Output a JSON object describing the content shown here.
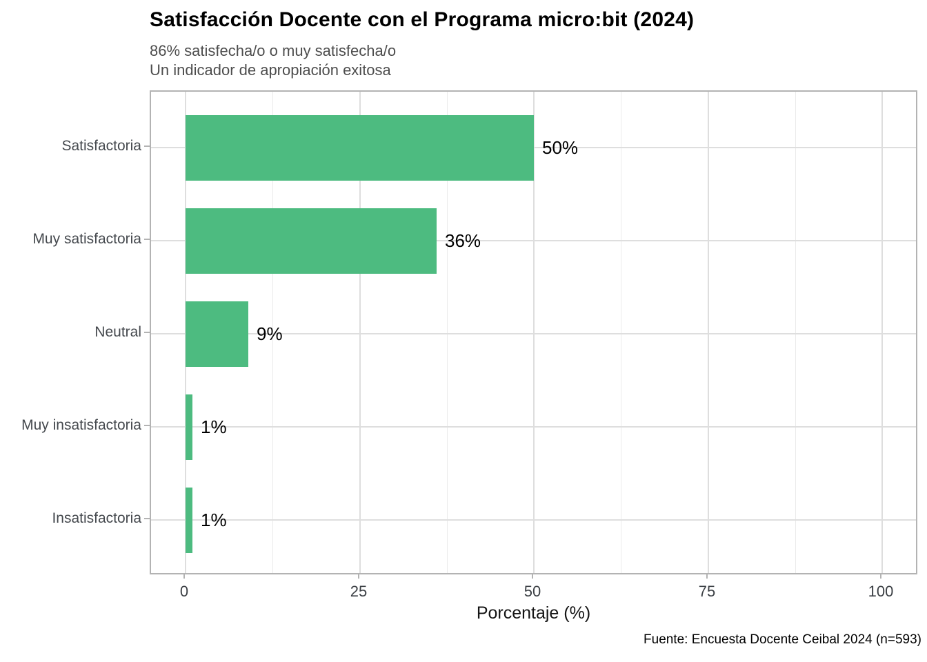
{
  "header": {
    "title": "Satisfacción Docente con el Programa micro:bit (2024)",
    "subtitle_line1": "86% satisfecha/o o muy satisfecha/o",
    "subtitle_line2": "Un indicador de apropiación exitosa"
  },
  "caption": "Fuente: Encuesta Docente Ceibal 2024 (n=593)",
  "chart_data": {
    "type": "bar",
    "orientation": "horizontal",
    "title": "Satisfacción Docente con el Programa micro:bit (2024)",
    "subtitle": "86% satisfecha/o o muy satisfecha/o\nUn indicador de apropiación exitosa",
    "categories": [
      "Satisfactoria",
      "Muy satisfactoria",
      "Neutral",
      "Muy insatisfactoria",
      "Insatisfactoria"
    ],
    "values": [
      50,
      36,
      9,
      1,
      1
    ],
    "value_labels": [
      "50%",
      "36%",
      "9%",
      "1%",
      "1%"
    ],
    "xlabel": "Porcentaje (%)",
    "ylabel": "",
    "xlim": [
      0,
      100
    ],
    "x_major_ticks": [
      0,
      25,
      50,
      75,
      100
    ],
    "x_minor_ticks": [
      12.5,
      37.5,
      62.5,
      87.5
    ],
    "grid": "major and minor vertical, major horizontal",
    "legend": "none",
    "bar_color": "#4dbb80",
    "panel_border_color": "#b3b3b3",
    "grid_major_color": "#dedede",
    "grid_minor_color": "#ebebeb"
  }
}
